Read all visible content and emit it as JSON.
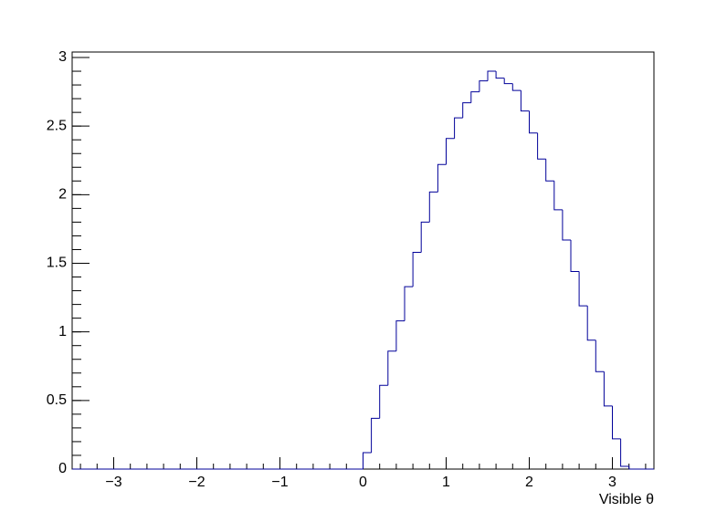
{
  "chart_data": {
    "type": "histogram",
    "x_label": "Visible  θ",
    "bins": [
      0,
      0.1,
      0.2,
      0.3,
      0.4,
      0.5,
      0.6,
      0.7,
      0.8,
      0.9,
      1.0,
      1.1,
      1.2,
      1.3,
      1.4,
      1.5,
      1.6,
      1.7,
      1.8,
      1.9,
      2.0,
      2.1,
      2.2,
      2.3,
      2.4,
      2.5,
      2.6,
      2.7,
      2.8,
      2.9,
      3.0,
      3.1,
      3.2
    ],
    "values": [
      0.12,
      0.37,
      0.61,
      0.86,
      1.08,
      1.33,
      1.58,
      1.8,
      2.02,
      2.22,
      2.41,
      2.56,
      2.67,
      2.75,
      2.83,
      2.9,
      2.85,
      2.81,
      2.76,
      2.61,
      2.45,
      2.26,
      2.1,
      1.89,
      1.67,
      1.44,
      1.19,
      0.94,
      0.71,
      0.46,
      0.22,
      0.02
    ],
    "color": "#000099",
    "xlim": [
      -3.5,
      3.5
    ],
    "ylim": [
      0,
      3.04
    ],
    "xticks": [
      {
        "value": -3,
        "label": "−3"
      },
      {
        "value": -2,
        "label": "−2"
      },
      {
        "value": -1,
        "label": "−1"
      },
      0,
      1,
      2,
      3
    ],
    "yticks": [
      0,
      0.5,
      1,
      1.5,
      2,
      2.5,
      3
    ]
  }
}
